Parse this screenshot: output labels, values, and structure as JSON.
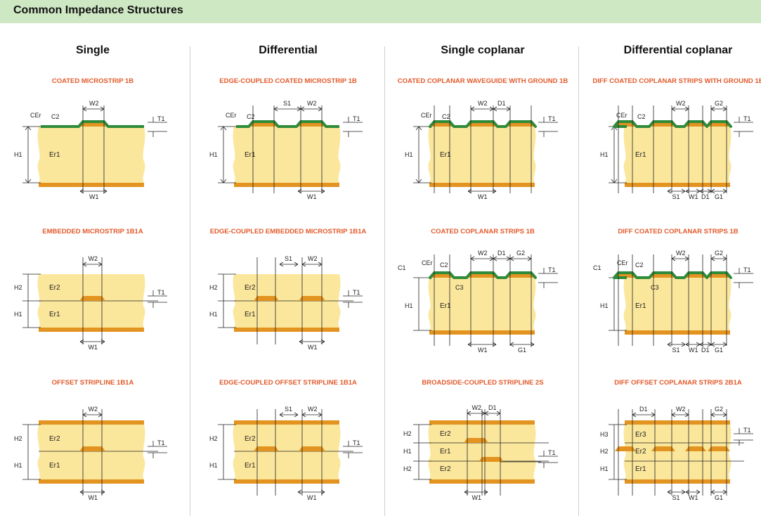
{
  "banner": {
    "title": "Common Impedance Structures"
  },
  "columns": [
    {
      "header": "Single"
    },
    {
      "header": "Differential"
    },
    {
      "header": "Single coplanar"
    },
    {
      "header": "Differential coplanar"
    }
  ],
  "structures": [
    {
      "title": "COATED MICROSTRIP 1B"
    },
    {
      "title": "EDGE-COUPLED COATED MICROSTRIP 1B"
    },
    {
      "title": "COATED COPLANAR WAVEGUIDE WITH GROUND 1B"
    },
    {
      "title": "DIFF COATED COPLANAR STRIPS WITH GROUND 1B"
    },
    {
      "title": "EMBEDDED MICROSTRIP 1B1A"
    },
    {
      "title": "EDGE-COUPLED EMBEDDED MICROSTRIP 1B1A"
    },
    {
      "title": "COATED COPLANAR STRIPS 1B"
    },
    {
      "title": "DIFF COATED COPLANAR STRIPS 1B"
    },
    {
      "title": "OFFSET STRIPLINE 1B1A"
    },
    {
      "title": "EDGE-COUPLED OFFSET STRIPLINE 1B1A"
    },
    {
      "title": "BROADSIDE-COUPLED STRIPLINE 2S"
    },
    {
      "title": "DIFF OFFSET COPLANAR STRIPS 2B1A"
    }
  ],
  "labels": {
    "H1": "H1",
    "H2": "H2",
    "H3": "H3",
    "W1": "W1",
    "W2": "W2",
    "S1": "S1",
    "D1": "D1",
    "G1": "G1",
    "G2": "G2",
    "T1": "T1",
    "C1": "C1",
    "C2": "C2",
    "C3": "C3",
    "CEr": "CEr",
    "Er1": "Er1",
    "Er2": "Er2",
    "Er3": "Er3"
  },
  "colors": {
    "dielectric": "#fbe79c",
    "copper": "#e3931f",
    "coating": "#2e8b3a",
    "title": "#e2592a",
    "banner": "#cfe8c4"
  }
}
